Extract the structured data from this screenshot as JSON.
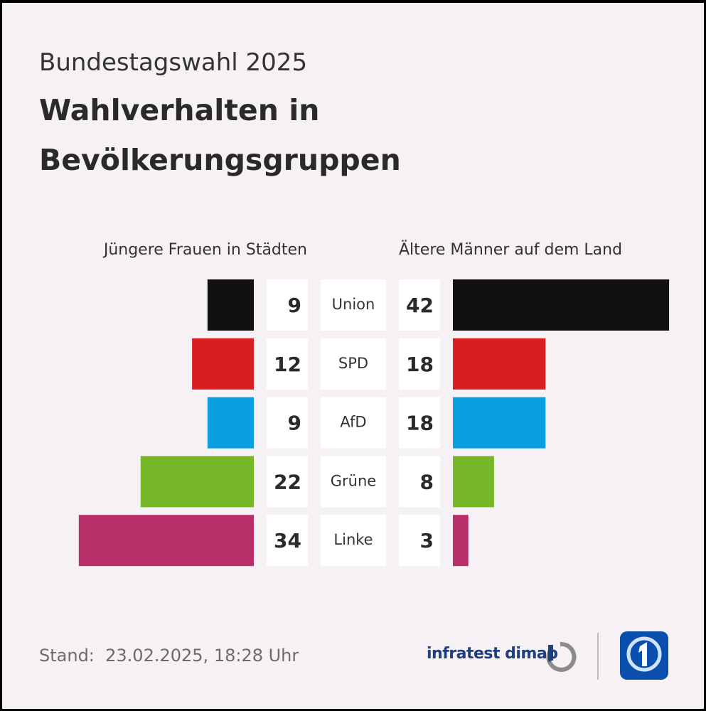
{
  "chart_data": {
    "type": "butterfly",
    "subtitle": "Bundestagswahl 2025",
    "title": "Wahlverhalten in Bevölkerungsgruppen",
    "categories": [
      "Union",
      "SPD",
      "AfD",
      "Grüne",
      "Linke"
    ],
    "colors": [
      "#111111",
      "#d71f1f",
      "#0b9fe0",
      "#77b82a",
      "#b8306a"
    ],
    "series": [
      {
        "name": "Jüngere Frauen in Städten",
        "values": [
          9,
          12,
          9,
          22,
          34
        ]
      },
      {
        "name": "Ältere Männer auf dem Land",
        "values": [
          42,
          18,
          18,
          8,
          3
        ]
      }
    ],
    "footer": "Stand:  23.02.2025, 18:28 Uhr",
    "source": "infratest dimap"
  }
}
